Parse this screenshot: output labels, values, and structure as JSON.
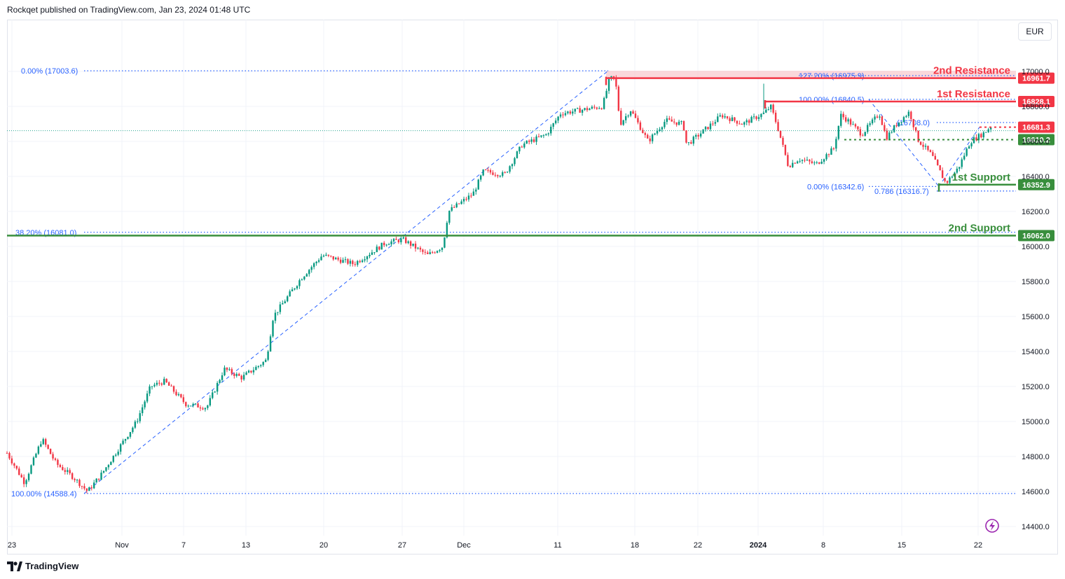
{
  "header": {
    "text": "Rockqet published on TradingView.com, Jan 23, 2024 01:48 UTC"
  },
  "currency": "EUR",
  "footer": {
    "brand": "TradingView"
  },
  "colors": {
    "up": "#089981",
    "down": "#f23645",
    "resistance": "#f23645",
    "support": "#388e3c",
    "fib": "#2962ff",
    "grid": "#f0f3fa",
    "resistance_zone": "#f8c7cc"
  },
  "chart_data": {
    "type": "candlestick",
    "title": "",
    "ylim": [
      14350,
      17100
    ],
    "y_ticks": [
      14400,
      14600,
      14800,
      15000,
      15200,
      15400,
      15600,
      15800,
      16000,
      16200,
      16400,
      16600,
      16800,
      17000
    ],
    "x_ticks": [
      "23",
      "Nov",
      "7",
      "13",
      "20",
      "27",
      "Dec",
      "11",
      "18",
      "22",
      "2024",
      "8",
      "15",
      "22"
    ],
    "path": [
      [
        0,
        14820
      ],
      [
        25,
        14650
      ],
      [
        50,
        14900
      ],
      [
        70,
        14760
      ],
      [
        95,
        14680
      ],
      [
        115,
        14600
      ],
      [
        135,
        14700
      ],
      [
        160,
        14850
      ],
      [
        185,
        15000
      ],
      [
        205,
        15200
      ],
      [
        225,
        15230
      ],
      [
        255,
        15100
      ],
      [
        285,
        15080
      ],
      [
        310,
        15300
      ],
      [
        335,
        15250
      ],
      [
        370,
        15350
      ],
      [
        380,
        15600
      ],
      [
        420,
        15820
      ],
      [
        450,
        15950
      ],
      [
        495,
        15900
      ],
      [
        540,
        16020
      ],
      [
        565,
        16040
      ],
      [
        600,
        15950
      ],
      [
        622,
        16000
      ],
      [
        630,
        16200
      ],
      [
        665,
        16300
      ],
      [
        680,
        16430
      ],
      [
        710,
        16410
      ],
      [
        735,
        16580
      ],
      [
        770,
        16640
      ],
      [
        790,
        16760
      ],
      [
        820,
        16780
      ],
      [
        850,
        16800
      ],
      [
        860,
        16960
      ],
      [
        868,
        16960
      ],
      [
        875,
        16700
      ],
      [
        890,
        16780
      ],
      [
        915,
        16600
      ],
      [
        940,
        16720
      ],
      [
        965,
        16700
      ],
      [
        970,
        16580
      ],
      [
        1000,
        16680
      ],
      [
        1020,
        16750
      ],
      [
        1050,
        16700
      ],
      [
        1080,
        16760
      ],
      [
        1090,
        16800
      ],
      [
        1100,
        16680
      ],
      [
        1115,
        16460
      ],
      [
        1130,
        16500
      ],
      [
        1155,
        16470
      ],
      [
        1180,
        16560
      ],
      [
        1190,
        16750
      ],
      [
        1200,
        16720
      ],
      [
        1220,
        16640
      ],
      [
        1245,
        16760
      ],
      [
        1255,
        16620
      ],
      [
        1270,
        16700
      ],
      [
        1288,
        16770
      ],
      [
        1300,
        16610
      ],
      [
        1320,
        16520
      ],
      [
        1340,
        16360
      ],
      [
        1358,
        16450
      ],
      [
        1375,
        16600
      ],
      [
        1395,
        16650
      ],
      [
        1405,
        16690
      ],
      [
        1415,
        16681
      ]
    ],
    "levels": [
      {
        "name": "2nd Resistance",
        "price": 16961.7,
        "color": "#f23645",
        "style": "solid",
        "x_start": 865
      },
      {
        "name": "1st Resistance",
        "price": 16828.1,
        "color": "#f23645",
        "style": "solid",
        "x_start": 1092
      },
      {
        "name": "",
        "price": 16681.3,
        "color": "#f23645",
        "style": "dotted",
        "x_start": 1398
      },
      {
        "name": "",
        "price": 16610.2,
        "color": "#388e3c",
        "style": "dotted",
        "x_start": 1205
      },
      {
        "name": "1st Support",
        "price": 16352.9,
        "color": "#388e3c",
        "style": "solid",
        "x_start": 1340
      },
      {
        "name": "2nd Support",
        "price": 16062.0,
        "color": "#388e3c",
        "style": "solid",
        "x_start": 10
      }
    ],
    "fib_labels": [
      {
        "text": "0.00% (17003.6)",
        "price": 17003.6,
        "lx": 30,
        "x1": 120,
        "x2": 868
      },
      {
        "text": "38.20% (16081.0)",
        "price": 16081.0,
        "lx": 22,
        "x1": 120,
        "x2": 1450
      },
      {
        "text": "100.00% (14588.4)",
        "price": 14588.4,
        "lx": 16,
        "x1": 120,
        "x2": 1450
      },
      {
        "text": "127.20% (16975.9)",
        "price": 16975.9,
        "lx": 1140,
        "x1": 1140,
        "x2": 1450
      },
      {
        "text": "100.00% (16840.5)",
        "price": 16840.5,
        "lx": 1140,
        "x1": 1240,
        "x2": 1450
      },
      {
        "text": "(16708.0)",
        "price": 16708.0,
        "lx": 1280,
        "x1": 1337,
        "x2": 1450
      },
      {
        "text": "0.00% (16342.6)",
        "price": 16342.6,
        "lx": 1152,
        "x1": 1240,
        "x2": 1340
      },
      {
        "text": "0.786 (16316.7)",
        "price": 16316.7,
        "lx": 1248,
        "x1": 1337,
        "x2": 1450
      }
    ],
    "fib_lines": [
      {
        "x1": 120,
        "p1": 14588.4,
        "x2": 868,
        "p2": 17003.6
      },
      {
        "x1": 1240,
        "p1": 16840.5,
        "x2": 1340,
        "p2": 16342.6
      },
      {
        "x1": 1340,
        "p1": 16342.6,
        "x2": 1398,
        "p2": 16681.3
      }
    ],
    "last_price": 16681.3
  }
}
